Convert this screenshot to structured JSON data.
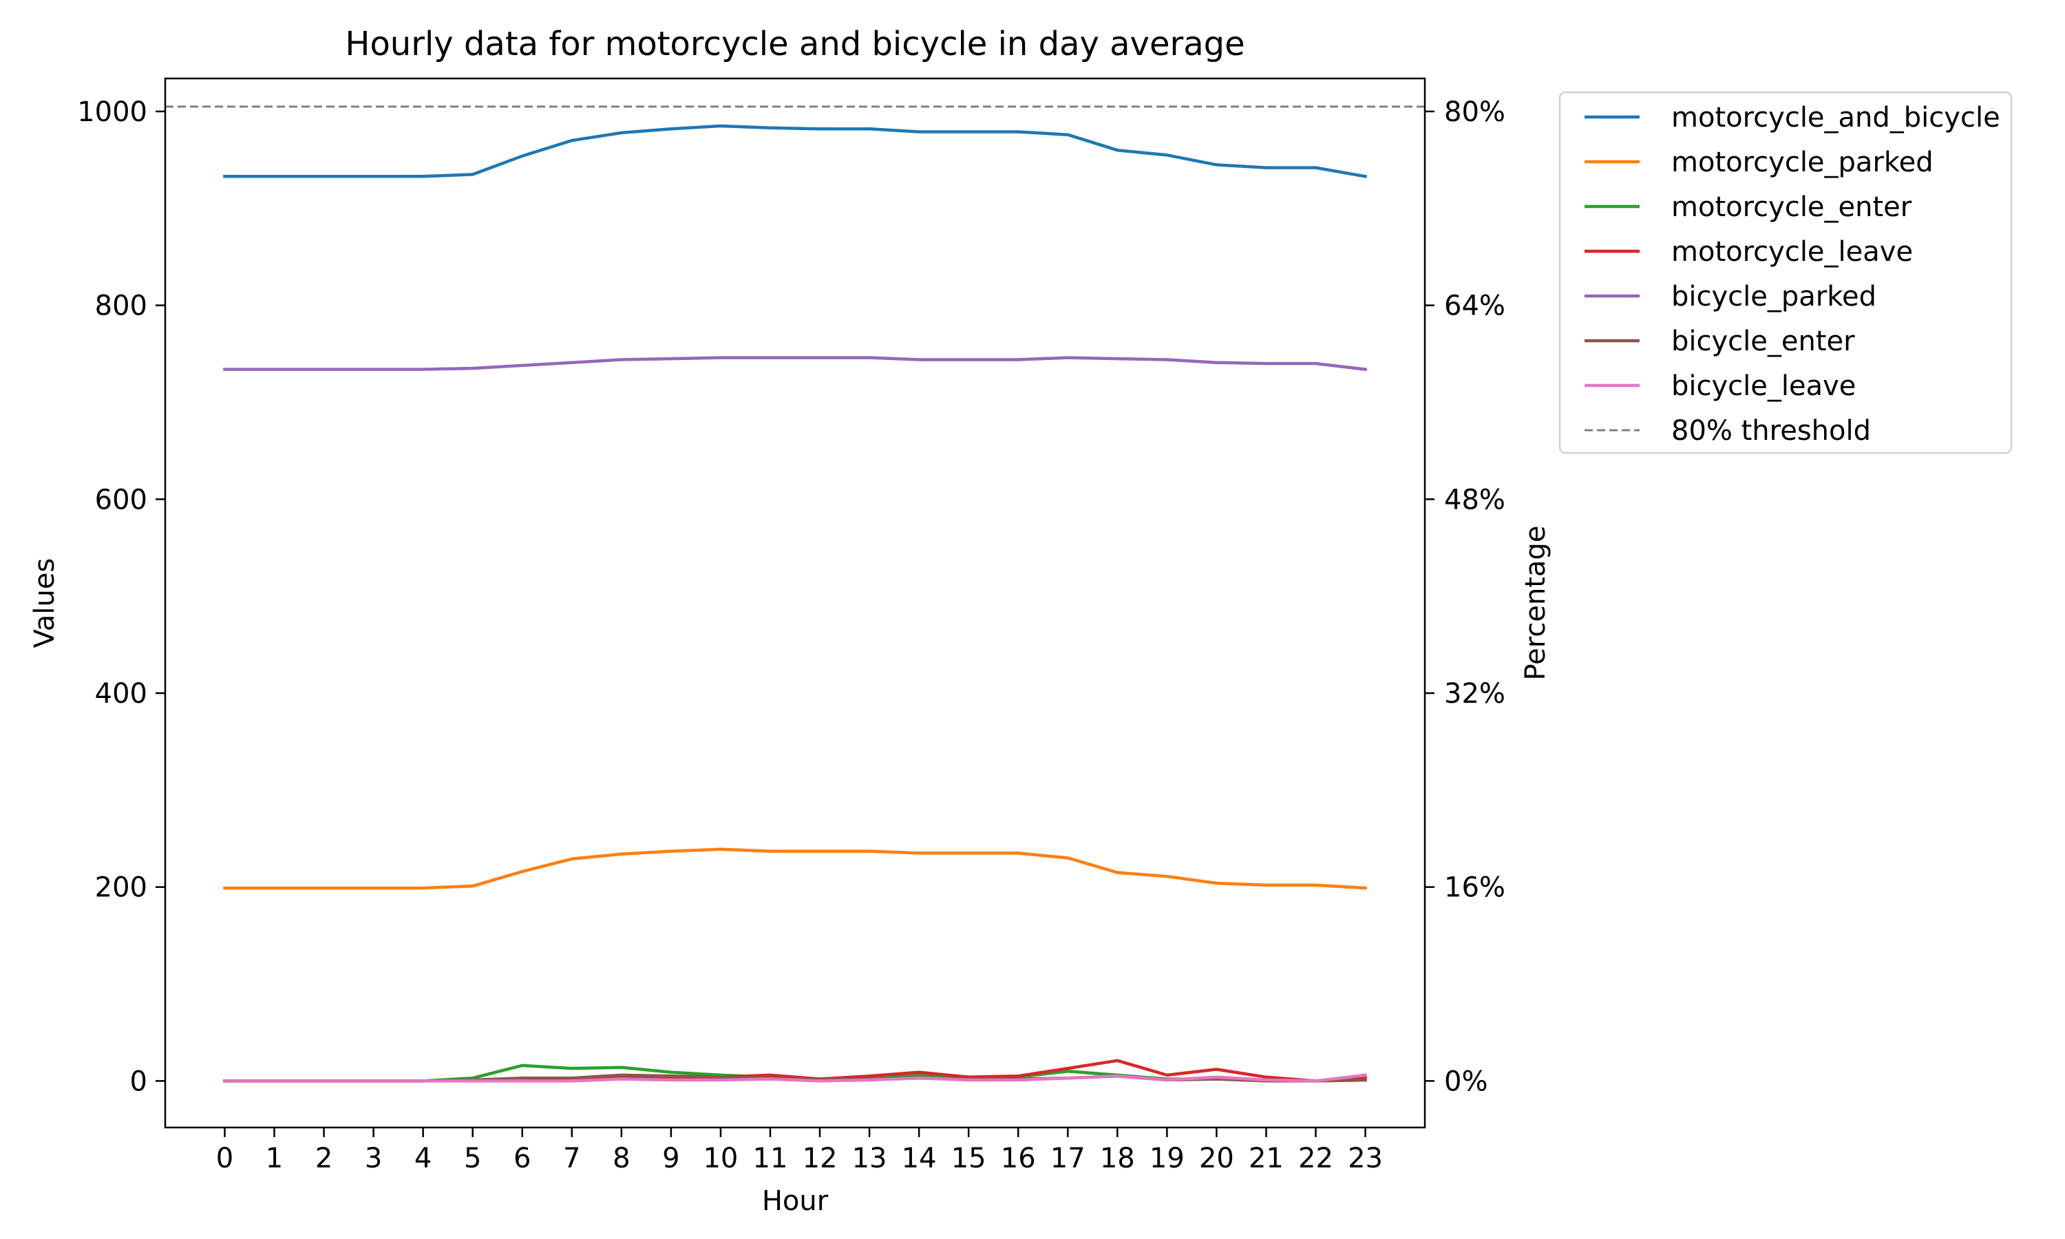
{
  "chart_data": {
    "type": "line",
    "title": "Hourly data for motorcycle and bicycle in day average",
    "xlabel": "Hour",
    "ylabel": "Values",
    "y2label": "Percentage",
    "x": [
      0,
      1,
      2,
      3,
      4,
      5,
      6,
      7,
      8,
      9,
      10,
      11,
      12,
      13,
      14,
      15,
      16,
      17,
      18,
      19,
      20,
      21,
      22,
      23
    ],
    "xlim": [
      -1.2,
      24.2
    ],
    "ylim": [
      -48,
      1034
    ],
    "yticks": [
      0,
      200,
      400,
      600,
      800,
      1000
    ],
    "y2ticks": [
      "0%",
      "16%",
      "32%",
      "48%",
      "64%",
      "80%"
    ],
    "threshold": {
      "name": "80% threshold",
      "value": 1005,
      "color": "#808080"
    },
    "legend_position": "outside-right-top",
    "grid": false,
    "series": [
      {
        "name": "motorcycle_and_bicycle",
        "color": "#1f77b4",
        "values": [
          933,
          933,
          933,
          933,
          933,
          935,
          954,
          970,
          978,
          982,
          985,
          983,
          982,
          982,
          979,
          979,
          979,
          976,
          960,
          955,
          945,
          942,
          942,
          933
        ]
      },
      {
        "name": "motorcycle_parked",
        "color": "#ff7f0e",
        "values": [
          199,
          199,
          199,
          199,
          199,
          201,
          216,
          229,
          234,
          237,
          239,
          237,
          237,
          237,
          235,
          235,
          235,
          230,
          215,
          211,
          204,
          202,
          202,
          199
        ]
      },
      {
        "name": "motorcycle_enter",
        "color": "#2ca02c",
        "values": [
          0,
          0,
          0,
          0,
          0,
          3,
          16,
          13,
          14,
          9,
          6,
          4,
          2,
          4,
          6,
          4,
          4,
          10,
          6,
          2,
          2,
          1,
          0,
          1
        ]
      },
      {
        "name": "motorcycle_leave",
        "color": "#d62728",
        "values": [
          0,
          0,
          0,
          0,
          0,
          1,
          2,
          2,
          4,
          4,
          4,
          6,
          2,
          5,
          9,
          4,
          5,
          13,
          21,
          6,
          12,
          4,
          0,
          3
        ]
      },
      {
        "name": "bicycle_parked",
        "color": "#9467bd",
        "values": [
          734,
          734,
          734,
          734,
          734,
          735,
          738,
          741,
          744,
          745,
          746,
          746,
          746,
          746,
          744,
          744,
          744,
          746,
          745,
          744,
          741,
          740,
          740,
          734
        ]
      },
      {
        "name": "bicycle_enter",
        "color": "#8c564b",
        "values": [
          0,
          0,
          0,
          0,
          0,
          1,
          3,
          3,
          6,
          5,
          4,
          3,
          1,
          2,
          3,
          2,
          2,
          3,
          5,
          1,
          2,
          0,
          0,
          1
        ]
      },
      {
        "name": "bicycle_leave",
        "color": "#e377c2",
        "values": [
          0,
          0,
          0,
          0,
          0,
          0,
          0,
          0,
          2,
          1,
          1,
          2,
          0,
          1,
          3,
          1,
          1,
          3,
          5,
          1,
          4,
          1,
          0,
          6
        ]
      }
    ]
  }
}
